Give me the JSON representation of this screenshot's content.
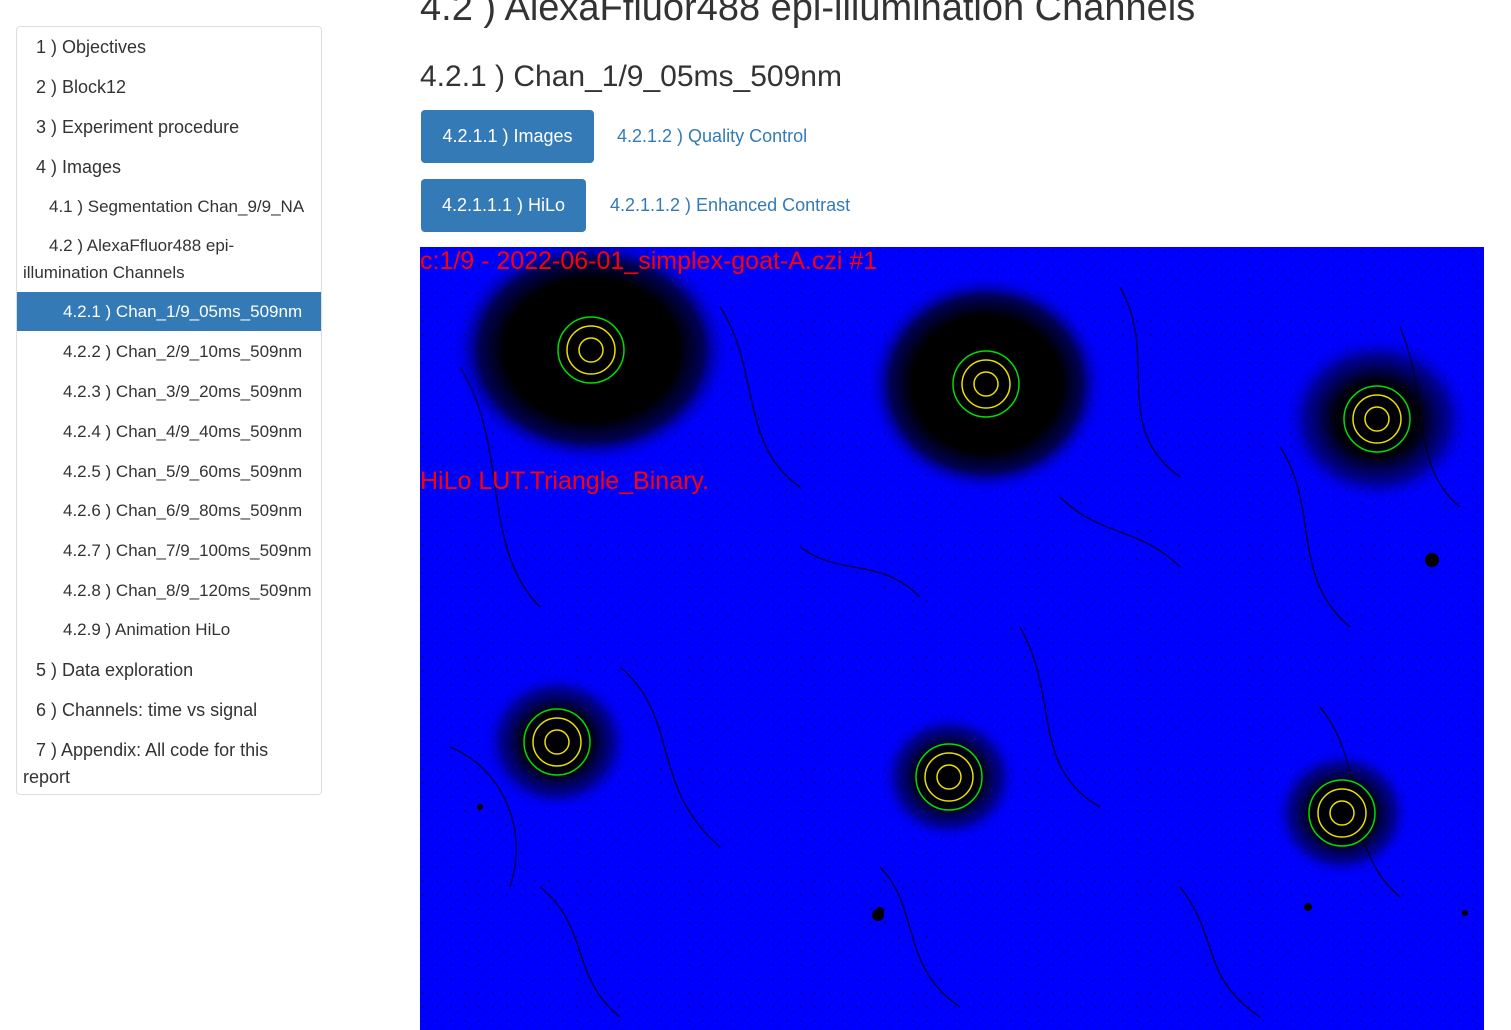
{
  "toc": {
    "items": [
      {
        "label": "1 ) Objectives"
      },
      {
        "label": "2 ) Block12"
      },
      {
        "label": "3 ) Experiment procedure"
      },
      {
        "label": "4 ) Images"
      },
      {
        "label": "4.1 ) Segmentation Chan_9/9_NA"
      },
      {
        "label": "4.2 ) AlexaFfluor488 epi-illumination Channels"
      },
      {
        "label": "4.2.1 ) Chan_1/9_05ms_509nm"
      },
      {
        "label": "4.2.2 ) Chan_2/9_10ms_509nm"
      },
      {
        "label": "4.2.3 ) Chan_3/9_20ms_509nm"
      },
      {
        "label": "4.2.4 ) Chan_4/9_40ms_509nm"
      },
      {
        "label": "4.2.5 ) Chan_5/9_60ms_509nm"
      },
      {
        "label": "4.2.6 ) Chan_6/9_80ms_509nm"
      },
      {
        "label": "4.2.7 ) Chan_7/9_100ms_509nm"
      },
      {
        "label": "4.2.8 ) Chan_8/9_120ms_509nm"
      },
      {
        "label": "4.2.9 ) Animation HiLo"
      },
      {
        "label": "5 ) Data exploration"
      },
      {
        "label": "6 ) Channels: time vs signal"
      },
      {
        "label": "7 ) Appendix: All code for this report"
      }
    ],
    "active_label": "4.2.1 ) Chan_1/9_05ms_509nm"
  },
  "main": {
    "section_title": "4.2 ) AlexaFfluor488 epi-illumination Channels",
    "subsection_title": "4.2.1 ) Chan_1/9_05ms_509nm",
    "tabs_level1": [
      {
        "label": "4.2.1.1 ) Images",
        "active": true
      },
      {
        "label": "4.2.1.2 ) Quality Control",
        "active": false
      }
    ],
    "tabs_level2": [
      {
        "label": "4.2.1.1.1 ) HiLo",
        "active": true
      },
      {
        "label": "4.2.1.1.2 ) Enhanced Contrast",
        "active": false
      }
    ]
  },
  "figure": {
    "caption_top": "c:1/9 - 2022-06-01_simplex-goat-A.czi #1",
    "caption_mid": "HiLo LUT.Triangle_Binary.",
    "background_color": "#0000ff",
    "spot_color": "#000000",
    "ring_outer_color": "#00dd00",
    "ring_inner_color": "#e8e000",
    "overlay_text_color": "#ff0000"
  },
  "colors": {
    "accent": "#337ab7",
    "text": "#333333",
    "border": "#dddddd"
  }
}
